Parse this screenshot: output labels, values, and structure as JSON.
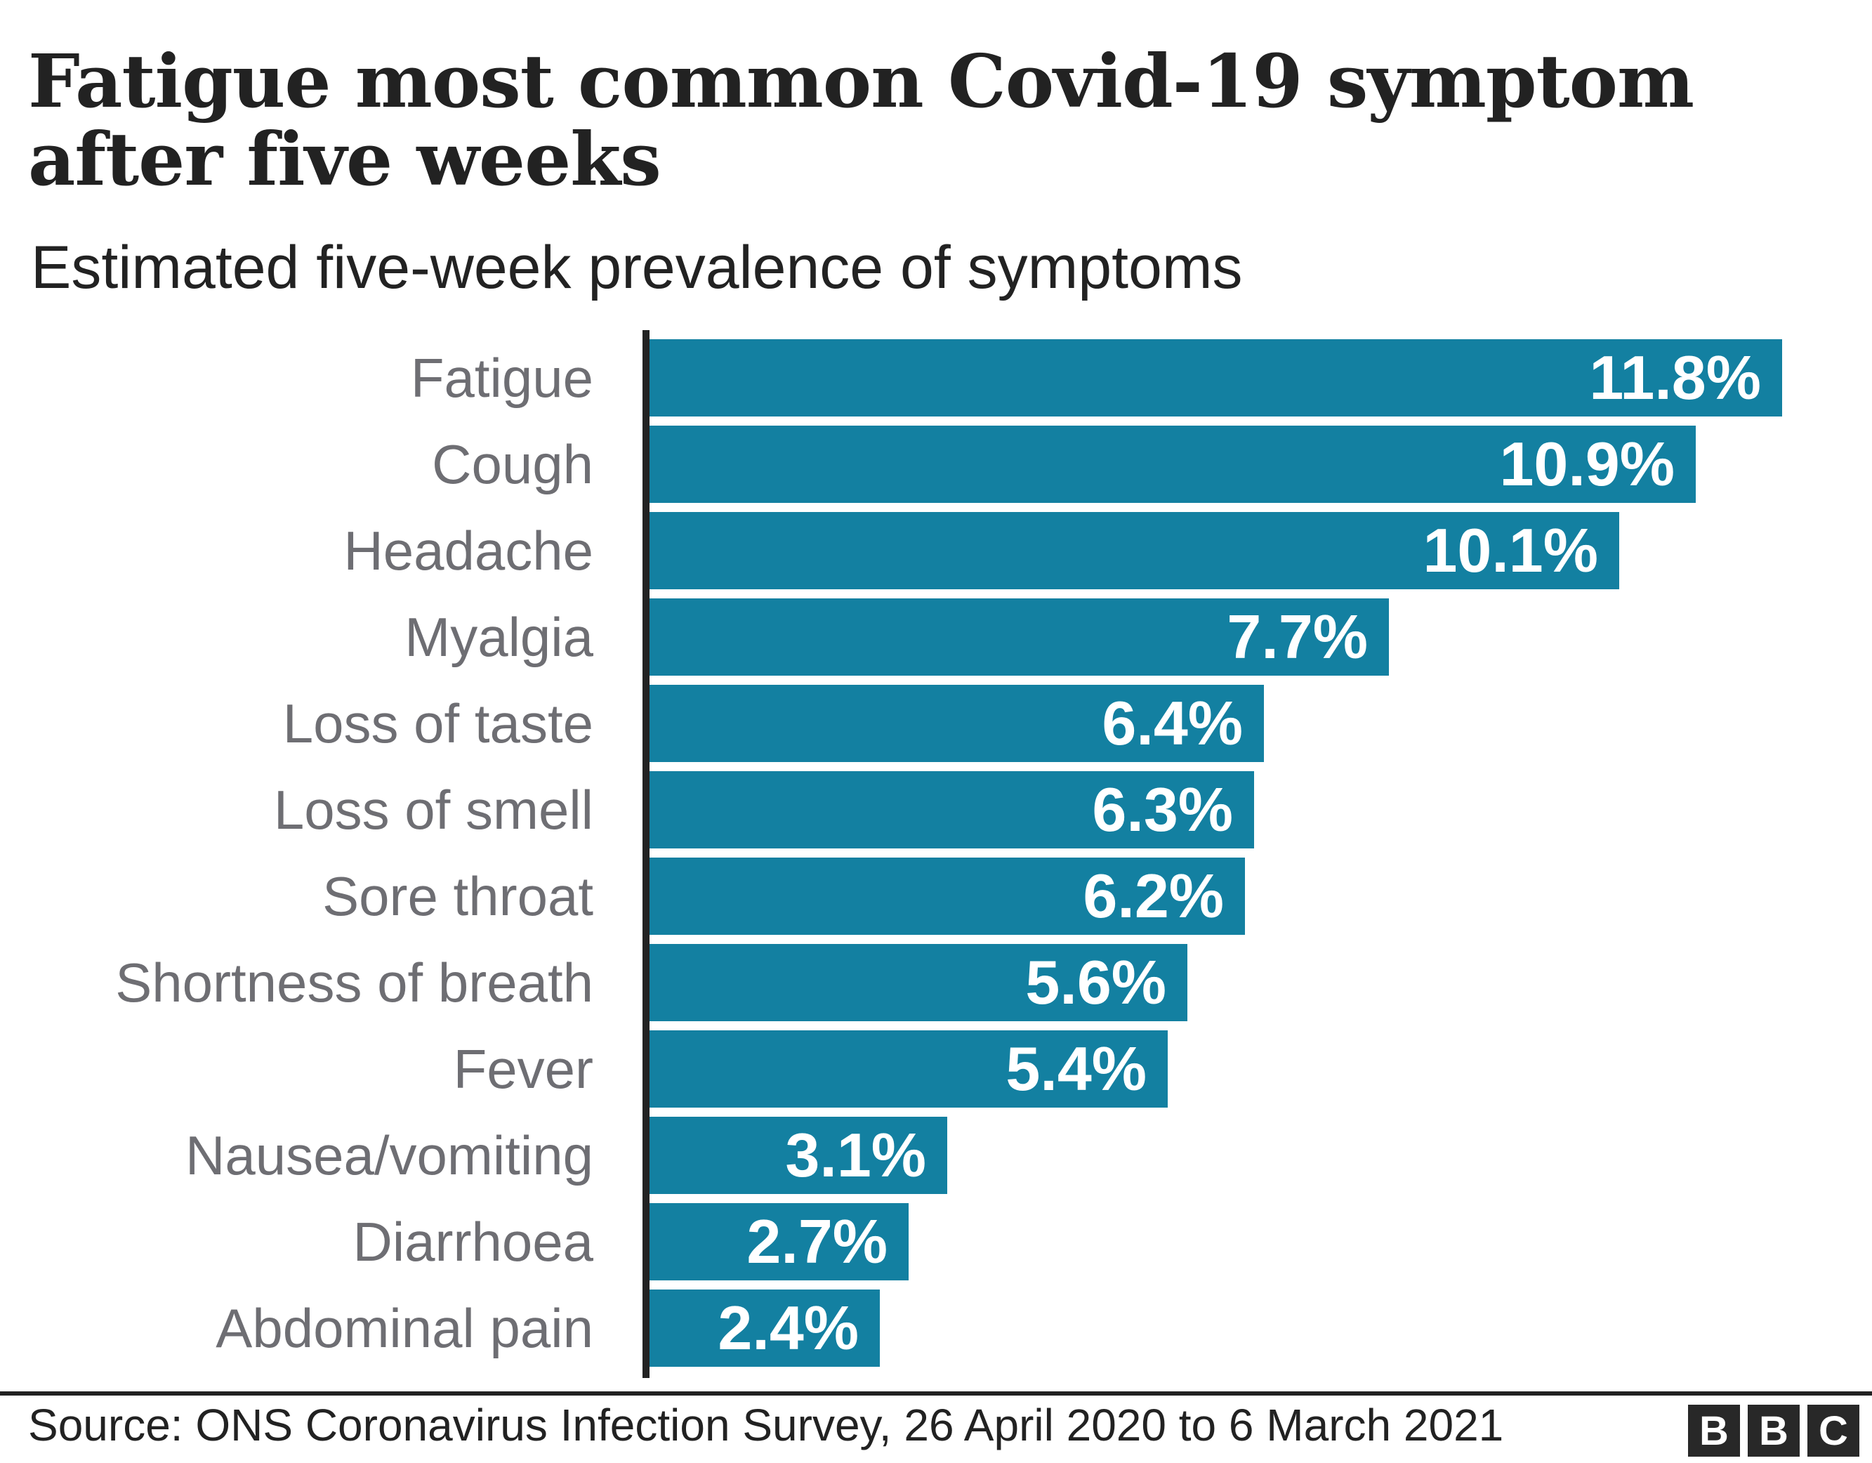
{
  "header": {
    "title_line1": "Fatigue most common Covid-19 symptom",
    "title_line2": "after five weeks",
    "subtitle": "Estimated five-week prevalence of symptoms"
  },
  "chart_data": {
    "type": "bar",
    "orientation": "horizontal",
    "title": "Fatigue most common Covid-19 symptom after five weeks",
    "subtitle": "Estimated five-week prevalence of symptoms",
    "categories": [
      "Fatigue",
      "Cough",
      "Headache",
      "Myalgia",
      "Loss of taste",
      "Loss of smell",
      "Sore throat",
      "Shortness of breath",
      "Fever",
      "Nausea/vomiting",
      "Diarrhoea",
      "Abdominal pain"
    ],
    "values": [
      11.8,
      10.9,
      10.1,
      7.7,
      6.4,
      6.3,
      6.2,
      5.6,
      5.4,
      3.1,
      2.7,
      2.4
    ],
    "value_labels": [
      "11.8%",
      "10.9%",
      "10.1%",
      "7.7%",
      "6.4%",
      "6.3%",
      "6.2%",
      "5.6%",
      "5.4%",
      "3.1%",
      "2.7%",
      "2.4%"
    ],
    "xlabel": "",
    "ylabel": "",
    "xlim": [
      0,
      13.1
    ],
    "grid": false,
    "legend": "none",
    "value_label_position": "inside-end",
    "bar_color": "#1380A1"
  },
  "footer": {
    "source": "Source: ONS Coronavirus Infection Survey, 26 April 2020 to 6 March 2021",
    "logo_letters": [
      "B",
      "B",
      "C"
    ]
  },
  "colors": {
    "accent": "#1380A1",
    "ink": "#222222",
    "label_gray": "#6E6E73",
    "value_text": "#FFFFFF",
    "background": "#FFFFFF"
  }
}
